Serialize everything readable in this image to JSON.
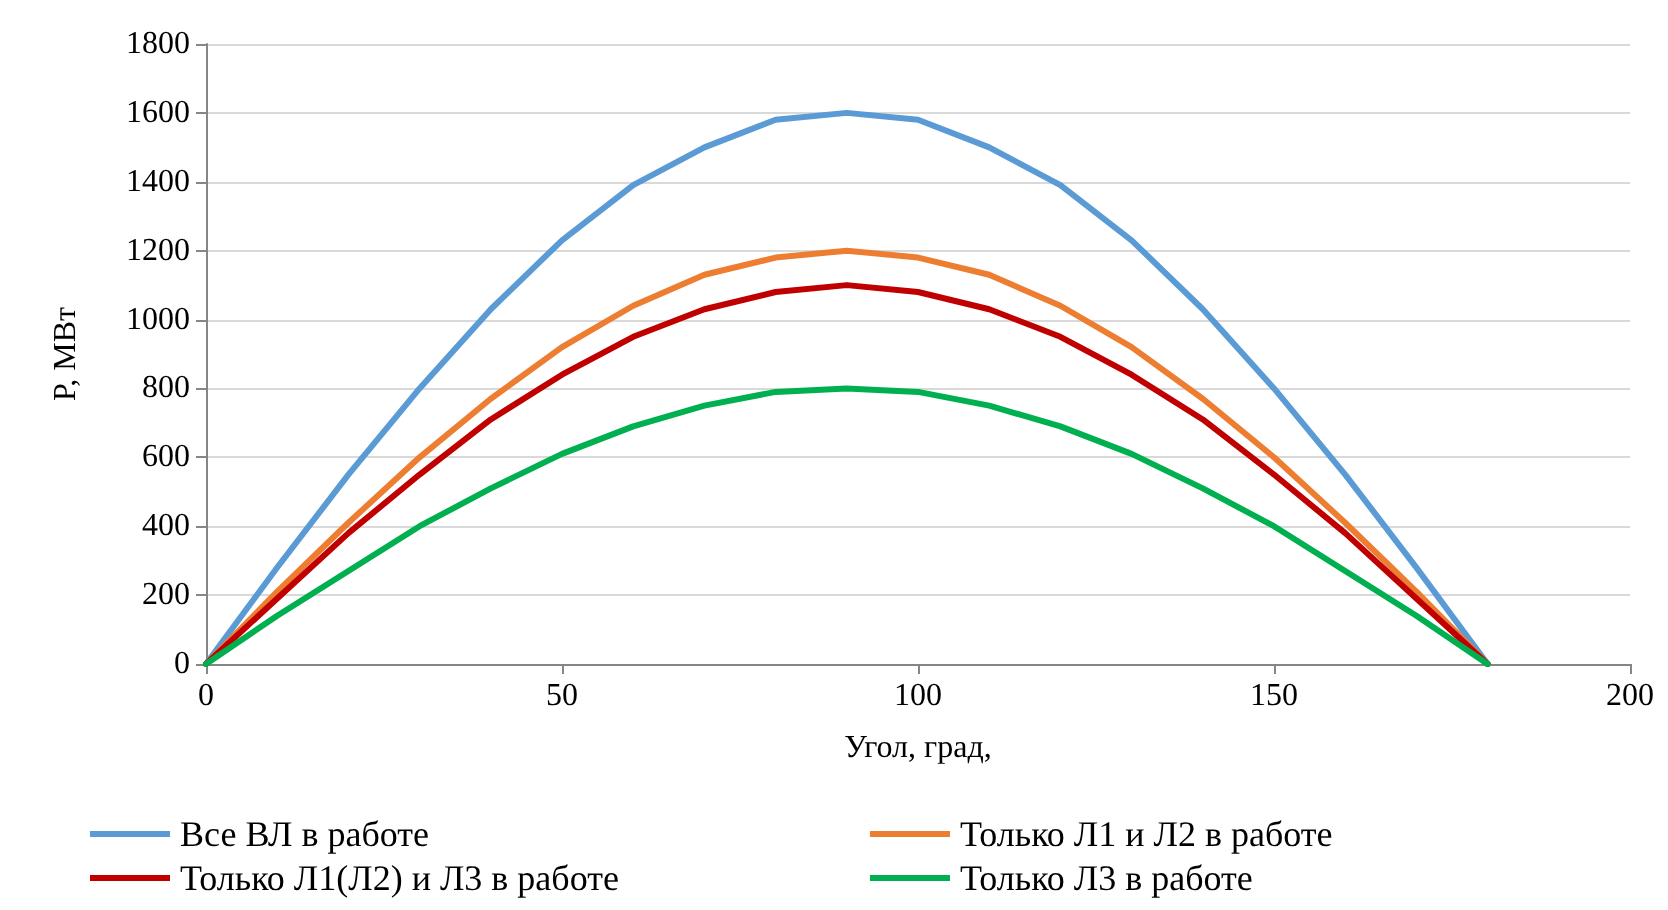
{
  "chart_data": {
    "type": "line",
    "xlabel": "Угол, град,",
    "ylabel": "P, МВт",
    "x": [
      0,
      10,
      20,
      30,
      40,
      50,
      60,
      70,
      80,
      90,
      100,
      110,
      120,
      130,
      140,
      150,
      160,
      170,
      180
    ],
    "series": [
      {
        "name": "Все ВЛ в работе",
        "color": "#5b9bd5",
        "values": [
          0,
          280,
          550,
          800,
          1030,
          1230,
          1390,
          1500,
          1580,
          1600,
          1580,
          1500,
          1390,
          1230,
          1030,
          800,
          550,
          280,
          0
        ]
      },
      {
        "name": "Только Л1 и Л2 в работе",
        "color": "#ed7d31",
        "values": [
          0,
          210,
          410,
          600,
          770,
          920,
          1040,
          1130,
          1180,
          1200,
          1180,
          1130,
          1040,
          920,
          770,
          600,
          410,
          210,
          0
        ]
      },
      {
        "name": "Только Л1(Л2) и Л3 в работе",
        "color": "#c00000",
        "values": [
          0,
          190,
          380,
          550,
          710,
          840,
          950,
          1030,
          1080,
          1100,
          1080,
          1030,
          950,
          840,
          710,
          550,
          380,
          190,
          0
        ]
      },
      {
        "name": "Только Л3 в работе",
        "color": "#00b050",
        "values": [
          0,
          140,
          270,
          400,
          510,
          610,
          690,
          750,
          790,
          800,
          790,
          750,
          690,
          610,
          510,
          400,
          270,
          140,
          0
        ]
      }
    ],
    "xlim": [
      0,
      200
    ],
    "xticks": [
      0,
      50,
      100,
      150,
      200
    ],
    "ylim": [
      0,
      1800
    ],
    "yticks": [
      0,
      200,
      400,
      600,
      800,
      1000,
      1200,
      1400,
      1600,
      1800
    ],
    "grid": "y",
    "legend": "bottom",
    "marker": "none",
    "line_style": "solid"
  }
}
